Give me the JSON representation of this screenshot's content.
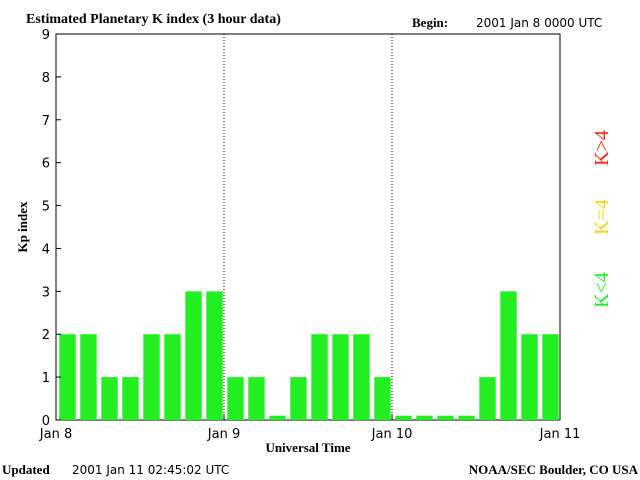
{
  "header": {
    "title": "Estimated Planetary K index (3 hour data)",
    "begin_label": "Begin:",
    "begin_value": "2001 Jan 8 0000 UTC"
  },
  "footer": {
    "updated_label": "Updated",
    "updated_value": "2001 Jan 11 02:45:02 UTC",
    "credit": "NOAA/SEC Boulder, CO USA"
  },
  "legend": {
    "low": {
      "text": "K<4",
      "color": "#22ee22"
    },
    "mid": {
      "text": "K=4",
      "color": "#f6d317"
    },
    "high": {
      "text": "K>4",
      "color": "#ee2a10"
    }
  },
  "chart_data": {
    "type": "bar",
    "title": "Estimated Planetary K index (3 hour data)",
    "xlabel": "Universal Time",
    "ylabel": "Kp index",
    "ylim": [
      0,
      9
    ],
    "yticks": [
      "0",
      "1",
      "2",
      "3",
      "4",
      "5",
      "6",
      "7",
      "8",
      "9"
    ],
    "xticks": [
      "Jan 8",
      "Jan 9",
      "Jan 10",
      "Jan 11"
    ],
    "day_separators": [
      "Jan 9",
      "Jan 10"
    ],
    "interval": "3 hour",
    "values": [
      2,
      2,
      1,
      1,
      2,
      2,
      3,
      3,
      1,
      1,
      0.1,
      1,
      2,
      2,
      2,
      1,
      0.1,
      0.1,
      0.1,
      0.1,
      1,
      3,
      2,
      2
    ],
    "bar_color": "#22ee22"
  }
}
